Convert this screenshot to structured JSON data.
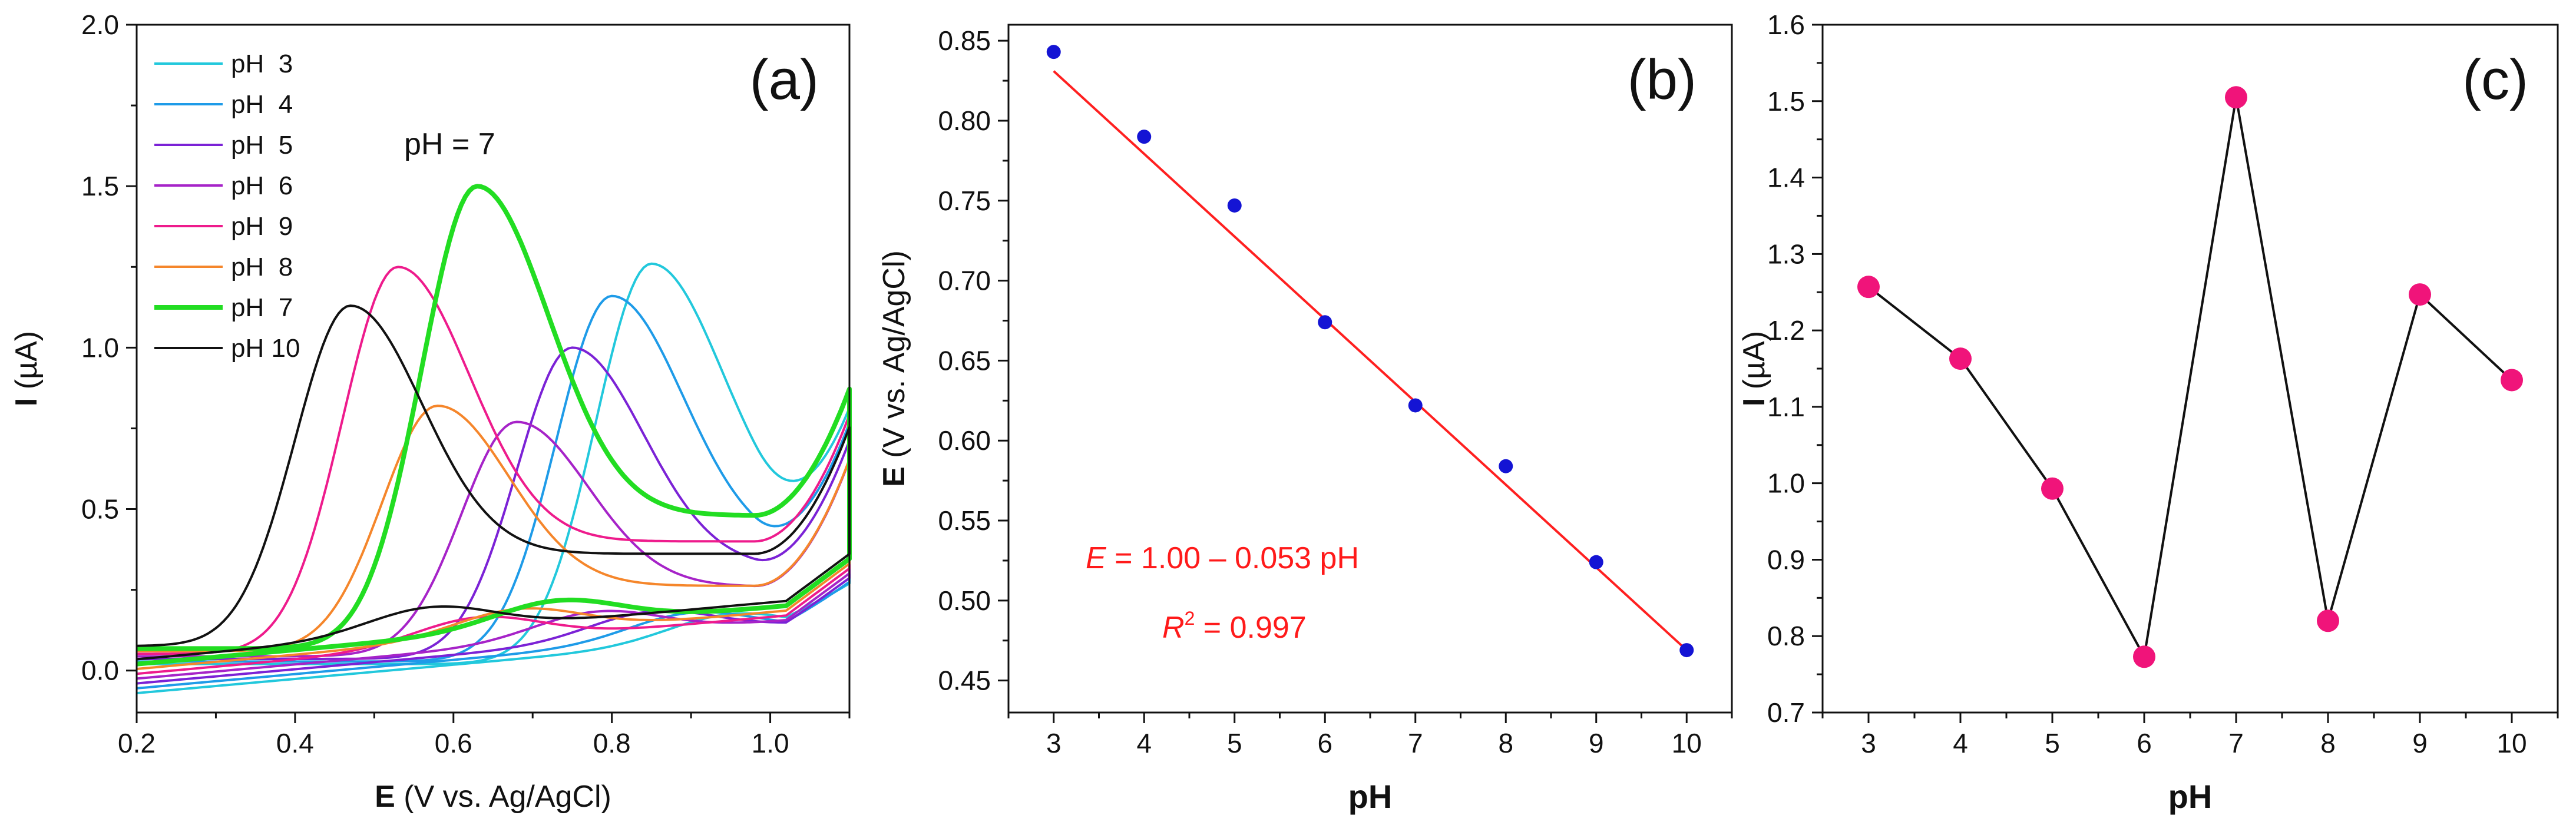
{
  "chart_data": [
    {
      "panel_label": "(a)",
      "type": "line",
      "title": "",
      "xlabel_bold": "E",
      "xlabel_rest": " (V vs. Ag/AgCl)",
      "ylabel_bold": "I",
      "ylabel_rest": " (µA)",
      "xlim": [
        0.2,
        1.1
      ],
      "ylim": [
        -0.13,
        2.0
      ],
      "xticks": [
        0.2,
        0.4,
        0.6,
        0.8,
        1.0
      ],
      "xtick_labels": [
        "0.2",
        "0.4",
        "0.6",
        "0.8",
        "1.0"
      ],
      "yticks": [
        0.0,
        0.5,
        1.0,
        1.5,
        2.0
      ],
      "ytick_labels": [
        "0.0",
        "0.5",
        "1.0",
        "1.5",
        "2.0"
      ],
      "annotation": "pH = 7",
      "legend_position": "top-left",
      "series": [
        {
          "name": "pH  3",
          "color": "#22c8dc",
          "peak_x": 0.85,
          "peak_y": 1.26,
          "bold": false
        },
        {
          "name": "pH  4",
          "color": "#1e9be8",
          "peak_x": 0.8,
          "peak_y": 1.16,
          "bold": false
        },
        {
          "name": "pH  5",
          "color": "#7b22d6",
          "peak_x": 0.75,
          "peak_y": 1.0,
          "bold": false
        },
        {
          "name": "pH  6",
          "color": "#a623c8",
          "peak_x": 0.68,
          "peak_y": 0.77,
          "bold": false
        },
        {
          "name": "pH  9",
          "color": "#ee1b8c",
          "peak_x": 0.53,
          "peak_y": 1.25,
          "bold": false
        },
        {
          "name": "pH  8",
          "color": "#f5862b",
          "peak_x": 0.58,
          "peak_y": 0.82,
          "bold": false
        },
        {
          "name": "pH  7",
          "color": "#22dd22",
          "peak_x": 0.63,
          "peak_y": 1.5,
          "bold": true
        },
        {
          "name": "pH 10",
          "color": "#111111",
          "peak_x": 0.47,
          "peak_y": 1.13,
          "bold": false
        }
      ]
    },
    {
      "panel_label": "(b)",
      "type": "scatter",
      "title": "",
      "xlabel": "pH",
      "ylabel_bold": "E",
      "ylabel_rest": " (V vs. Ag/AgCl)",
      "xlim": [
        2.5,
        10.5
      ],
      "ylim": [
        0.43,
        0.86
      ],
      "xticks": [
        3,
        4,
        5,
        6,
        7,
        8,
        9,
        10
      ],
      "xtick_labels": [
        "3",
        "4",
        "5",
        "6",
        "7",
        "8",
        "9",
        "10"
      ],
      "yticks": [
        0.45,
        0.5,
        0.55,
        0.6,
        0.65,
        0.7,
        0.75,
        0.8,
        0.85
      ],
      "ytick_labels": [
        "0.45",
        "0.50",
        "0.55",
        "0.60",
        "0.65",
        "0.70",
        "0.75",
        "0.80",
        "0.85"
      ],
      "x": [
        3,
        4,
        5,
        6,
        7,
        8,
        9,
        10
      ],
      "y": [
        0.843,
        0.79,
        0.747,
        0.674,
        0.622,
        0.584,
        0.524,
        0.469
      ],
      "fit": {
        "intercept": 1.0,
        "slope": -0.053,
        "x_range": [
          3,
          10
        ]
      },
      "equation_italic": "E",
      "equation_rest": " = 1.00 – 0.053 pH",
      "r2_italic": "R",
      "r2_sup": "2",
      "r2_rest": " = 0.997",
      "point_color": "#1414d4",
      "line_color": "#ff2020"
    },
    {
      "panel_label": "(c)",
      "type": "line",
      "title": "",
      "xlabel": "pH",
      "ylabel_bold": "I",
      "ylabel_rest": " (µA)",
      "xlim": [
        2.5,
        10.5
      ],
      "ylim": [
        0.7,
        1.6
      ],
      "xticks": [
        3,
        4,
        5,
        6,
        7,
        8,
        9,
        10
      ],
      "xtick_labels": [
        "3",
        "4",
        "5",
        "6",
        "7",
        "8",
        "9",
        "10"
      ],
      "yticks": [
        0.7,
        0.8,
        0.9,
        1.0,
        1.1,
        1.2,
        1.3,
        1.4,
        1.5,
        1.6
      ],
      "ytick_labels": [
        "0.7",
        "0.8",
        "0.9",
        "1.0",
        "1.1",
        "1.2",
        "1.3",
        "1.4",
        "1.5",
        "1.6"
      ],
      "x": [
        3,
        4,
        5,
        6,
        7,
        8,
        9,
        10
      ],
      "y": [
        1.257,
        1.163,
        0.993,
        0.773,
        1.505,
        0.82,
        1.247,
        1.135
      ],
      "marker_color": "#f0147a",
      "line_color": "#111111"
    }
  ]
}
